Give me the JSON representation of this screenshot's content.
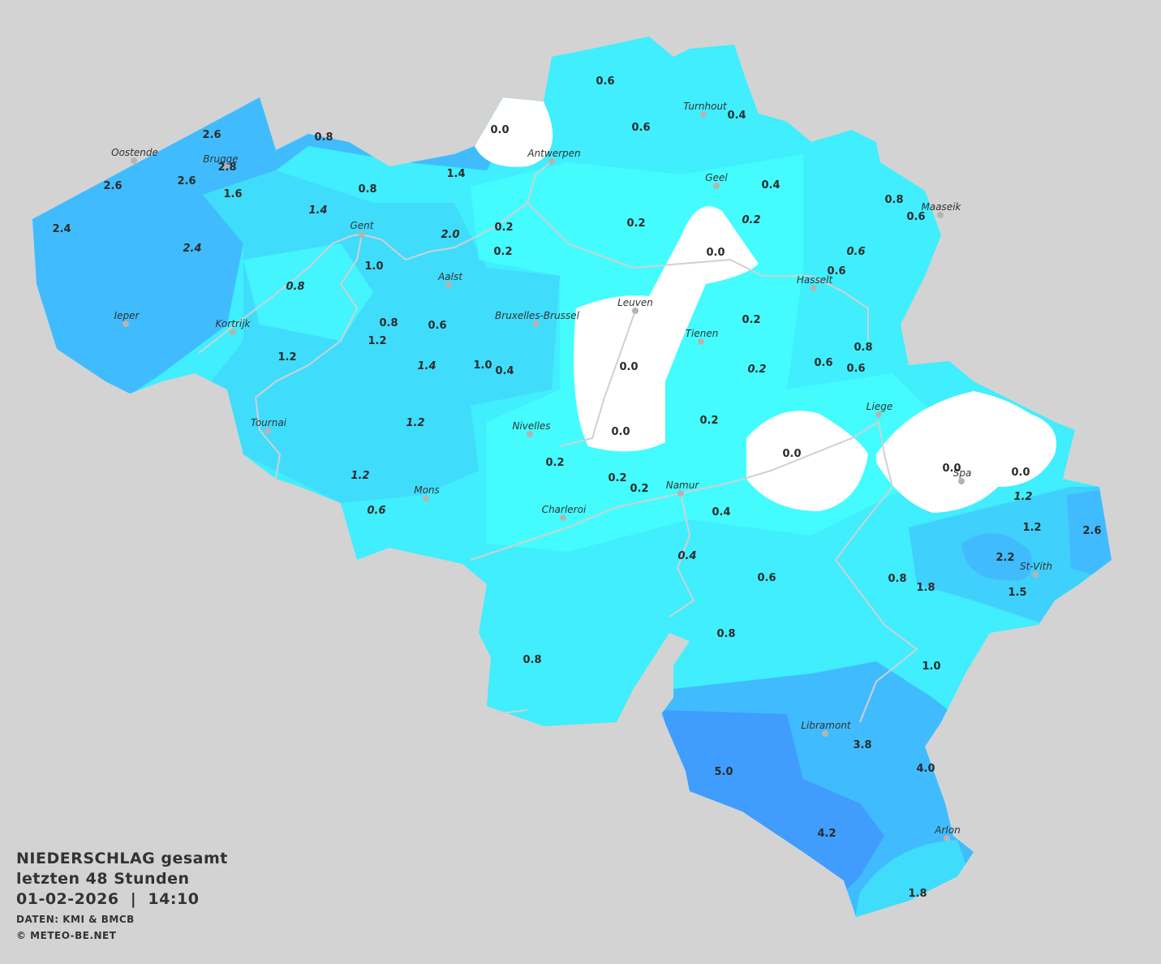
{
  "title": {
    "line1": "NIEDERSCHLAG gesamt",
    "line2": "letzten 48 Stunden",
    "datetime": "01-02-2026  |  14:10",
    "source": "DATEN: KMI & BMCB",
    "copyright": "© METEO-BE.NET"
  },
  "colors": {
    "background": "#d3d3d3",
    "very_light": "#44fcfe",
    "light": "#40eefe",
    "medium": "#40dcfc",
    "dark": "#40bcfe",
    "darkest": "#409cfd",
    "dry": "#ffffff",
    "rivers": "#d0d0d0"
  },
  "cities": [
    "Oostende",
    "Brugge",
    "Gent",
    "Antwerpen",
    "Turnhout",
    "Geel",
    "Maaseik",
    "Aalst",
    "Hasselt",
    "Leuven",
    "Bruxelles-Brussel",
    "Tienen",
    "Ieper",
    "Kortrijk",
    "Liege",
    "Tournai",
    "Nivelles",
    "Spa",
    "Mons",
    "Namur",
    "Charleroi",
    "St-Vith",
    "Libramont",
    "Arlon"
  ],
  "values": [
    "2.6",
    "2.6",
    "2.6",
    "2.8",
    "1.6",
    "2.4",
    "2.4",
    "0.8",
    "0.8",
    "1.4",
    "1.4",
    "2.0",
    "1.0",
    "0.8",
    "0.8",
    "0.6",
    "1.2",
    "1.2",
    "1.4",
    "1.0",
    "0.4",
    "1.2",
    "1.2",
    "0.6",
    "0.0",
    "0.2",
    "0.2",
    "0.6",
    "0.6",
    "0.4",
    "0.4",
    "0.2",
    "0.2",
    "0.0",
    "0.8",
    "0.6",
    "0.6",
    "0.6",
    "0.2",
    "0.0",
    "0.2",
    "0.8",
    "0.6",
    "0.6",
    "0.0",
    "0.2",
    "0.2",
    "0.2",
    "0.2",
    "0.0",
    "0.0",
    "0.0",
    "0.4",
    "1.2",
    "1.2",
    "2.6",
    "2.2",
    "1.5",
    "0.4",
    "0.6",
    "0.8",
    "1.8",
    "0.8",
    "0.8",
    "1.0",
    "3.8",
    "4.0",
    "5.0",
    "4.2",
    "1.8"
  ],
  "units": "mm"
}
